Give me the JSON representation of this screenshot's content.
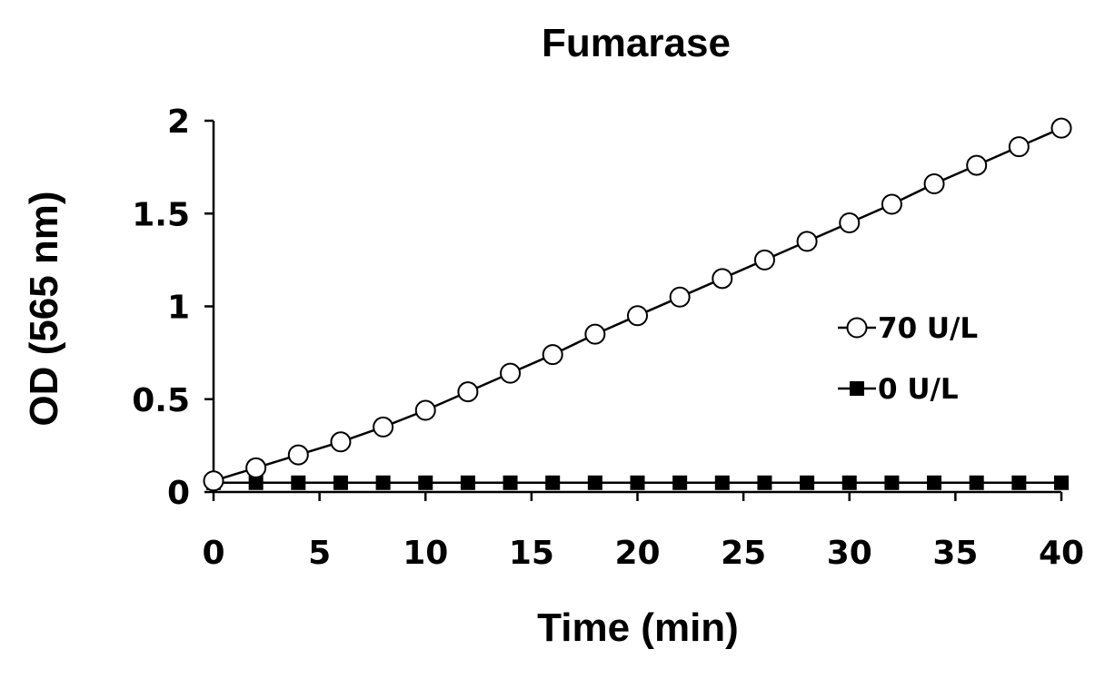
{
  "chart_data": {
    "type": "line",
    "title": "Fumarase",
    "xlabel": "Time (min)",
    "ylabel": "OD (565 nm)",
    "xlim": [
      0,
      40
    ],
    "ylim": [
      0,
      2
    ],
    "xticks": [
      "0",
      "5",
      "10",
      "15",
      "20",
      "25",
      "30",
      "35",
      "40"
    ],
    "yticks": [
      "0",
      "0.5",
      "1",
      "1.5",
      "2"
    ],
    "grid": false,
    "legend_position": "right",
    "x": [
      0,
      2,
      4,
      6,
      8,
      10,
      12,
      14,
      16,
      18,
      20,
      22,
      24,
      26,
      28,
      30,
      32,
      34,
      36,
      38,
      40
    ],
    "series": [
      {
        "name": "70 U/L",
        "marker": "open-circle",
        "color": "#000000",
        "values": [
          0.06,
          0.13,
          0.2,
          0.27,
          0.35,
          0.44,
          0.54,
          0.64,
          0.74,
          0.85,
          0.95,
          1.05,
          1.15,
          1.25,
          1.35,
          1.45,
          1.55,
          1.66,
          1.76,
          1.86,
          1.96
        ]
      },
      {
        "name": "0 U/L",
        "marker": "filled-square",
        "color": "#000000",
        "values": [
          0.05,
          0.05,
          0.05,
          0.05,
          0.05,
          0.05,
          0.05,
          0.05,
          0.05,
          0.05,
          0.05,
          0.05,
          0.05,
          0.05,
          0.05,
          0.05,
          0.05,
          0.05,
          0.05,
          0.05,
          0.05
        ]
      }
    ]
  }
}
